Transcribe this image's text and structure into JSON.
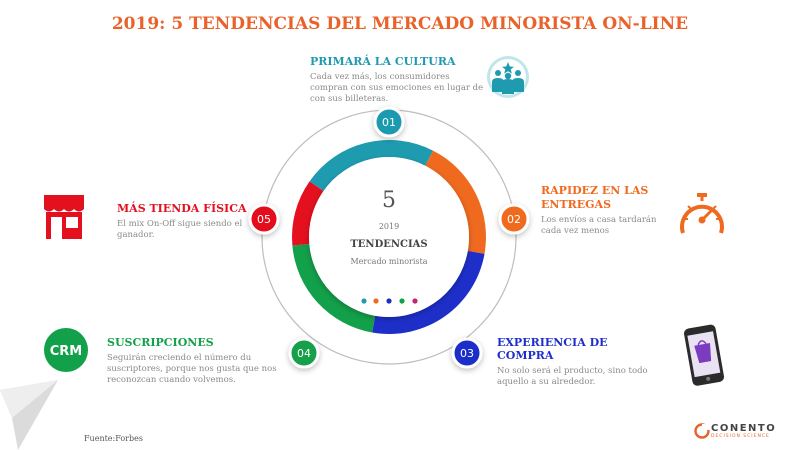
{
  "title": "2019: 5 TENDENCIAS DEL MERCADO MINORISTA ON-LINE",
  "center": {
    "number": "5",
    "year": "2019",
    "label": "TENDENCIAS",
    "sublabel": "Mercado minorista"
  },
  "trends": [
    {
      "num": "01",
      "title": "PRIMARÁ LA CULTURA",
      "line1": "Cada vez más, los consumidores",
      "line2": "compran con sus emociones en lugar de",
      "line3": "con sus billeteras.",
      "color": "#1f9bb0",
      "icon": "people-group-icon"
    },
    {
      "num": "02",
      "title1": "RAPIDEZ EN LAS",
      "title2": "ENTREGAS",
      "line1": "Los envíos a casa tardarán",
      "line2": "cada vez menos",
      "color": "#ef6a1f",
      "icon": "speedometer-icon"
    },
    {
      "num": "03",
      "title": "EXPERIENCIA DE COMPRA",
      "line1": "No solo será el producto, sino todo",
      "line2": "aquello a su alrededor.",
      "color": "#1e2fc9",
      "icon": "smartphone-shopping-icon"
    },
    {
      "num": "04",
      "title": "SUSCRIPCIONES",
      "line1": "Seguirán creciendo el número du",
      "line2": "suscriptores, porque nos gusta que nos",
      "line3": "reconozcan cuando volvemos.",
      "color": "#13a04a",
      "icon": "crm-icon"
    },
    {
      "num": "05",
      "title": "MÁS TIENDA FÍSICA",
      "line1": "El mix On-Off sigue siendo el",
      "line2": "ganador.",
      "color": "#e4101e",
      "icon": "storefront-icon"
    }
  ],
  "source": "Fuente:Forbes",
  "logo": {
    "word": "CONENTO",
    "sub": "DECISION SCIENCE"
  },
  "colors": {
    "title": "#e8622a",
    "gray_text": "#8a8a8a"
  }
}
